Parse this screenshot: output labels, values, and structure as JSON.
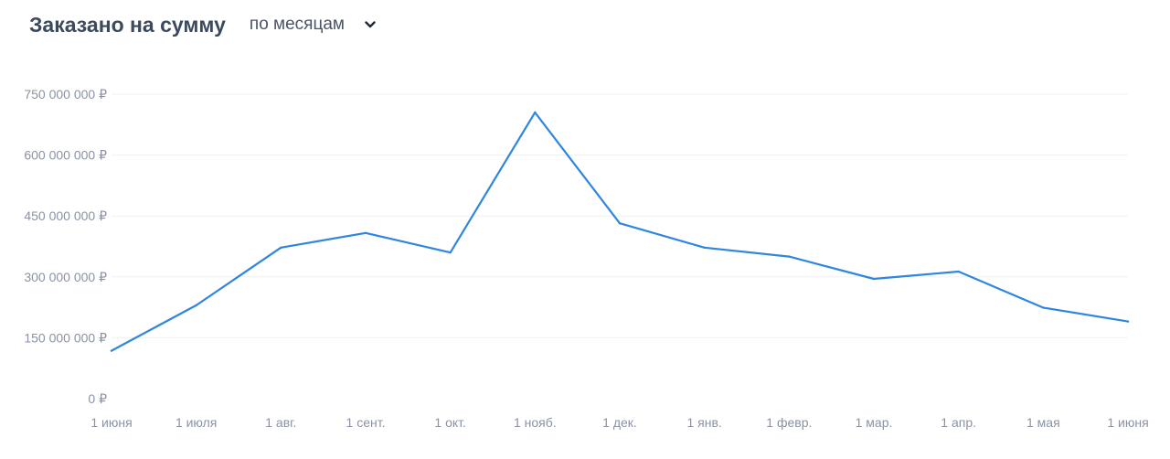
{
  "header": {
    "title": "Заказано на сумму",
    "period_selector": {
      "selected": "по месяцам",
      "icon": "chevron-down-icon"
    }
  },
  "chart_data": {
    "type": "line",
    "title": "Заказано на сумму",
    "xlabel": "",
    "ylabel": "",
    "x_ticks": [
      "1 июня",
      "1 июля",
      "1 авг.",
      "1 сент.",
      "1 окт.",
      "1 нояб.",
      "1 дек.",
      "1 янв.",
      "1 февр.",
      "1 мар.",
      "1 апр.",
      "1 мая",
      "1 июня"
    ],
    "y_ticks": [
      "0 ₽",
      "150 000 000 ₽",
      "300 000 000 ₽",
      "450 000 000 ₽",
      "600 000 000 ₽",
      "750 000 000 ₽"
    ],
    "y_tick_values": [
      0,
      150000000,
      300000000,
      450000000,
      600000000,
      750000000
    ],
    "ylim": [
      0,
      750000000
    ],
    "series": [
      {
        "color": "#2f86e0",
        "values": [
          118000000,
          230000000,
          372000000,
          408000000,
          360000000,
          705000000,
          432000000,
          372000000,
          350000000,
          295000000,
          313000000,
          224000000,
          190000000
        ]
      }
    ],
    "grid": true,
    "gridline_color": "#eef0f3",
    "legend": "none"
  }
}
